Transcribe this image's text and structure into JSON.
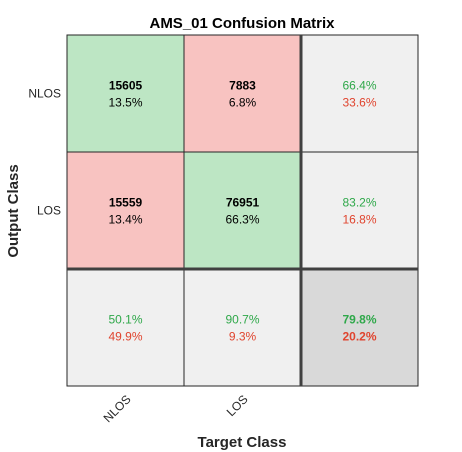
{
  "chart_data": {
    "type": "heatmap",
    "title": "AMS_01 Confusion Matrix",
    "xlabel": "Target Class",
    "ylabel": "Output Class",
    "x_tick_labels": [
      "NLOS",
      "LOS"
    ],
    "y_tick_labels": [
      "NLOS",
      "LOS"
    ],
    "matrix": [
      [
        {
          "count": "15605",
          "percent": "13.5%",
          "kind": "correct"
        },
        {
          "count": "7883",
          "percent": "6.8%",
          "kind": "incorrect"
        }
      ],
      [
        {
          "count": "15559",
          "percent": "13.4%",
          "kind": "incorrect"
        },
        {
          "count": "76951",
          "percent": "66.3%",
          "kind": "correct"
        }
      ]
    ],
    "row_summary": [
      {
        "correct": "66.4%",
        "incorrect": "33.6%"
      },
      {
        "correct": "83.2%",
        "incorrect": "16.8%"
      }
    ],
    "column_summary": [
      {
        "correct": "50.1%",
        "incorrect": "49.9%"
      },
      {
        "correct": "90.7%",
        "incorrect": "9.3%"
      }
    ],
    "overall": {
      "correct": "79.8%",
      "incorrect": "20.2%"
    },
    "colors": {
      "correct_cell": "#bde6c4",
      "incorrect_cell": "#f8c3c1",
      "summary_cell": "#f0f0f0",
      "overall_cell": "#d9d9d9",
      "green_text": "#2fa84a",
      "red_text": "#e0442e"
    }
  }
}
